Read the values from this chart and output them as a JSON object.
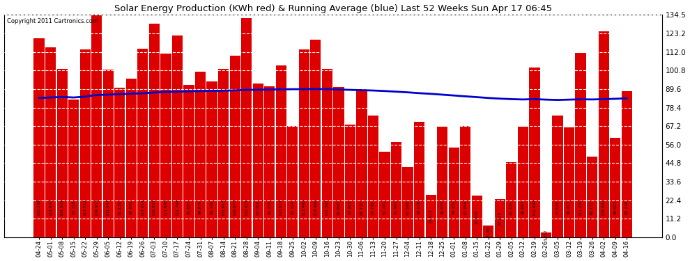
{
  "title": "Solar Energy Production (KWh red) & Running Average (blue) Last 52 Weeks Sun Apr 17 06:45",
  "copyright": "Copyright 2011 Cartronics.com",
  "bar_color": "#dd0000",
  "avg_color": "#0000cc",
  "background_color": "#ffffff",
  "plot_bg_color": "#ffffff",
  "ylim": [
    0.0,
    134.5
  ],
  "yticks": [
    0.0,
    11.2,
    22.4,
    33.6,
    44.8,
    56.0,
    67.2,
    78.4,
    89.6,
    100.8,
    112.0,
    123.2,
    134.5
  ],
  "categories": [
    "04-24",
    "05-01",
    "05-08",
    "05-15",
    "05-22",
    "05-29",
    "06-05",
    "06-12",
    "06-19",
    "06-26",
    "07-03",
    "07-10",
    "07-17",
    "07-24",
    "07-31",
    "08-07",
    "08-14",
    "08-21",
    "08-28",
    "09-04",
    "09-11",
    "09-18",
    "09-25",
    "10-02",
    "10-09",
    "10-16",
    "10-23",
    "10-30",
    "11-06",
    "11-13",
    "11-20",
    "11-27",
    "12-04",
    "12-11",
    "12-18",
    "12-25",
    "01-01",
    "01-08",
    "01-15",
    "01-22",
    "01-29",
    "02-05",
    "02-12",
    "02-19",
    "02-26",
    "03-05",
    "03-12",
    "03-19",
    "03-26",
    "04-02",
    "04-09",
    "04-16"
  ],
  "values": [
    120.139,
    114.6,
    101.551,
    83.318,
    113.712,
    134.453,
    101.347,
    90.239,
    95.841,
    114.014,
    128.907,
    111.096,
    121.764,
    91.897,
    99.876,
    94.146,
    101.613,
    109.875,
    132.615,
    93.082,
    91.255,
    103.912,
    67.324,
    113.46,
    119.46,
    101.567,
    90.9,
    67.985,
    89.73,
    73.749,
    51.741,
    57.467,
    42.598,
    69.978,
    25.533,
    66.933,
    54.152,
    67.09,
    25.078,
    7.009,
    22.925,
    45.375,
    66.897,
    102.692,
    3.152,
    73.525,
    66.417,
    111.33,
    48.737,
    124.582,
    60.007,
    88.216
  ],
  "running_avg": [
    84.2,
    84.5,
    84.8,
    84.5,
    85.0,
    86.0,
    86.2,
    86.5,
    86.8,
    87.0,
    87.5,
    87.8,
    88.0,
    88.2,
    88.4,
    88.5,
    88.6,
    88.8,
    89.1,
    89.2,
    89.3,
    89.4,
    89.5,
    89.5,
    89.6,
    89.5,
    89.3,
    89.1,
    88.9,
    88.7,
    88.4,
    88.0,
    87.6,
    87.1,
    86.7,
    86.2,
    85.7,
    85.2,
    84.7,
    84.2,
    83.8,
    83.5,
    83.3,
    83.5,
    83.2,
    83.0,
    83.2,
    83.4,
    83.3,
    83.5,
    83.7,
    84.0
  ]
}
